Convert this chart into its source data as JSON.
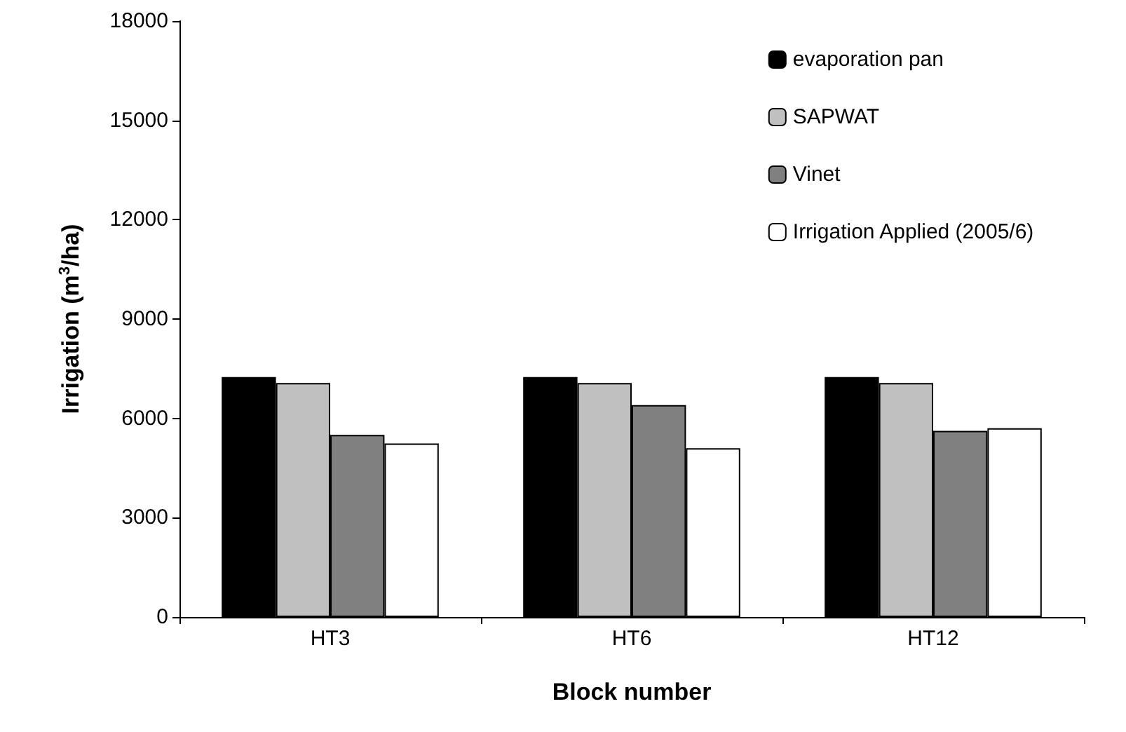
{
  "chart_data": {
    "type": "bar",
    "xlabel": "Block number",
    "ylabel": "Irrigation (m$^{3}$/ha)",
    "categories": [
      "HT3",
      "HT6",
      "HT12"
    ],
    "series": [
      {
        "name": "evaporation pan",
        "color": "#000000",
        "values": [
          7250,
          7250,
          7250
        ]
      },
      {
        "name": "SAPWAT",
        "color": "#c0c0c0",
        "values": [
          7070,
          7070,
          7070
        ]
      },
      {
        "name": "Vinet",
        "color": "#808080",
        "values": [
          5500,
          6400,
          5620
        ]
      },
      {
        "name": "Irrigation Applied (2005/6)",
        "color": "#ffffff",
        "values": [
          5240,
          5100,
          5700
        ]
      }
    ],
    "ylim": [
      0,
      18000
    ],
    "yticks": [
      0,
      3000,
      6000,
      9000,
      12000,
      15000,
      18000
    ],
    "grid": false,
    "legend": "top right"
  }
}
